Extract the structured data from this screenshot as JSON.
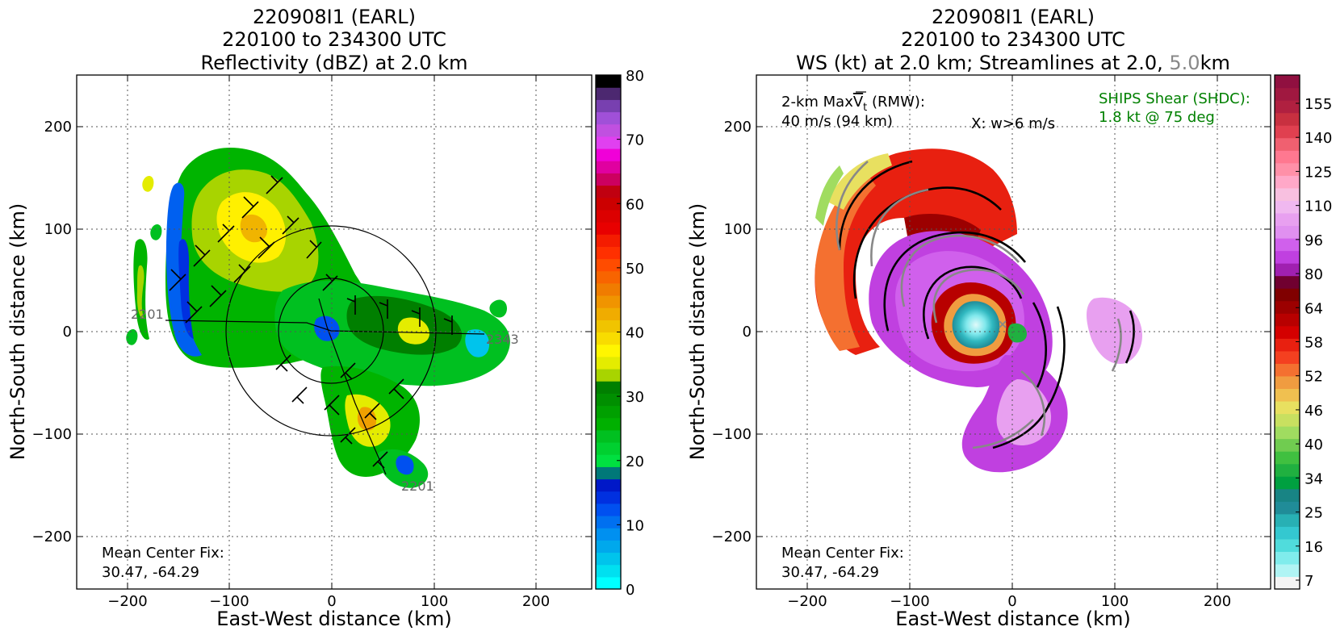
{
  "colors": {
    "reflectivity_scale": [
      "#00ffff",
      "#00e0f0",
      "#00c4ec",
      "#00a8ec",
      "#0090f0",
      "#0070f0",
      "#0050f0",
      "#0030e0",
      "#0018c8",
      "#007878",
      "#00e040",
      "#00d030",
      "#00c020",
      "#00b000",
      "#00a000",
      "#008f00",
      "#007f00",
      "#a8d400",
      "#e4ec00",
      "#fff600",
      "#f8dc00",
      "#f0c400",
      "#f0ac00",
      "#f09400",
      "#f07c00",
      "#f86400",
      "#ff4c00",
      "#ff3000",
      "#f41c00",
      "#e80000",
      "#dc0000",
      "#cc0000",
      "#c00010",
      "#cc0060",
      "#e000a0",
      "#f000d8",
      "#e040f0",
      "#c050e0",
      "#a050d8",
      "#7840b0",
      "#4c2870",
      "#000000"
    ],
    "ws_scale": [
      "#f4f4f4",
      "#b0f4f4",
      "#80ecec",
      "#50dcdc",
      "#34c8d0",
      "#28b0b4",
      "#208c98",
      "#188484",
      "#00a040",
      "#20b040",
      "#40c040",
      "#70cc50",
      "#a0dc60",
      "#c8e060",
      "#e8e060",
      "#f0c050",
      "#f09c40",
      "#f47030",
      "#f44020",
      "#e82010",
      "#d40000",
      "#b80000",
      "#9c0000",
      "#800000",
      "#700030",
      "#a020b0",
      "#c040e0",
      "#d060ec",
      "#e090f0",
      "#e8a0f0",
      "#f0b8f0",
      "#f8c0e0",
      "#ffa8c8",
      "#ff90a8",
      "#ff7890",
      "#f06070",
      "#e04050",
      "#c83040",
      "#b02040",
      "#a01840",
      "#901040"
    ],
    "axis": "#000000",
    "grid": "#555555",
    "shear_text": "#008000",
    "streamline_gray": "#888888",
    "streamline_black": "#000000",
    "track_label": "#666666"
  },
  "chart_data": [
    {
      "type": "heatmap",
      "title": "220908I1 (EARL)\n220100 to 234300 UTC\nReflectivity (dBZ) at 2.0 km",
      "title_lines": [
        "220908I1 (EARL)",
        "220100 to 234300 UTC",
        "Reflectivity (dBZ) at 2.0 km"
      ],
      "xlabel": "East-West distance (km)",
      "ylabel": "North-South distance (km)",
      "xlim": [
        -250,
        250
      ],
      "ylim": [
        -250,
        250
      ],
      "xticks": [
        -200,
        -100,
        0,
        100,
        200
      ],
      "yticks": [
        -200,
        -100,
        0,
        100,
        200
      ],
      "xtick_labels": [
        "−200",
        "−100",
        "0",
        "100",
        "200"
      ],
      "ytick_labels": [
        "−200",
        "−100",
        "0",
        "100",
        "200"
      ],
      "grid": true,
      "annotations": {
        "center_fix_label": "Mean Center Fix:",
        "center_fix_value": "30.47, -64.29",
        "track_start": "2201",
        "track_mid": "2201",
        "track_end": "2343"
      },
      "track_labels": [
        {
          "text": "2201",
          "x": -198,
          "y": 16
        },
        {
          "text": "2201",
          "x": 68,
          "y": -149
        },
        {
          "text": "2343",
          "x": 148,
          "y": -7
        }
      ],
      "colorbar": {
        "min": 0,
        "max": 80,
        "ticks": [
          0,
          10,
          20,
          30,
          40,
          50,
          60,
          70,
          80
        ],
        "tick_labels": [
          "0",
          "10",
          "20",
          "30",
          "40",
          "50",
          "60",
          "70",
          "80"
        ]
      }
    },
    {
      "type": "heatmap",
      "title": "220908I1 (EARL)\n220100 to 234300 UTC\nWS (kt) at 2.0 km; Streamlines at 2.0, 5.0 km",
      "title_lines": [
        "220908I1 (EARL)",
        "220100 to 234300 UTC"
      ],
      "title_line3_parts": {
        "main": "WS (kt) at 2.0 km; Streamlines at 2.0, ",
        "gray": "5.0",
        "end": "km"
      },
      "xlabel": "East-West distance (km)",
      "ylabel": "North-South distance (km)",
      "xlim": [
        -250,
        250
      ],
      "ylim": [
        -250,
        250
      ],
      "xticks": [
        -200,
        -100,
        0,
        100,
        200
      ],
      "yticks": [
        -200,
        -100,
        0,
        100,
        200
      ],
      "xtick_labels": [
        "−200",
        "−100",
        "0",
        "100",
        "200"
      ],
      "ytick_labels": [
        "−200",
        "−100",
        "0",
        "100",
        "200"
      ],
      "grid": true,
      "annotations": {
        "maxvt_label": "2-km Max",
        "maxvt_symbol": "V",
        "maxvt_sub": "t",
        "maxvt_rmw": " (RMW):",
        "maxvt_value": "40 m/s (94 km)",
        "updraft_marker": "X: w>6 m/s",
        "shear_label": "SHIPS Shear (SHDC):",
        "shear_value": "1.8 kt @ 75 deg",
        "center_fix_label": "Mean Center Fix:",
        "center_fix_value": "30.47, -64.29"
      },
      "colorbar": {
        "min": 7,
        "max": 160,
        "ticks": [
          7,
          16,
          25,
          34,
          40,
          46,
          52,
          58,
          64,
          80,
          96,
          110,
          125,
          140,
          155
        ],
        "tick_labels": [
          "7",
          "16",
          "25",
          "34",
          "40",
          "46",
          "52",
          "58",
          "64",
          "80",
          "96",
          "110",
          "125",
          "140",
          "155"
        ]
      }
    }
  ]
}
